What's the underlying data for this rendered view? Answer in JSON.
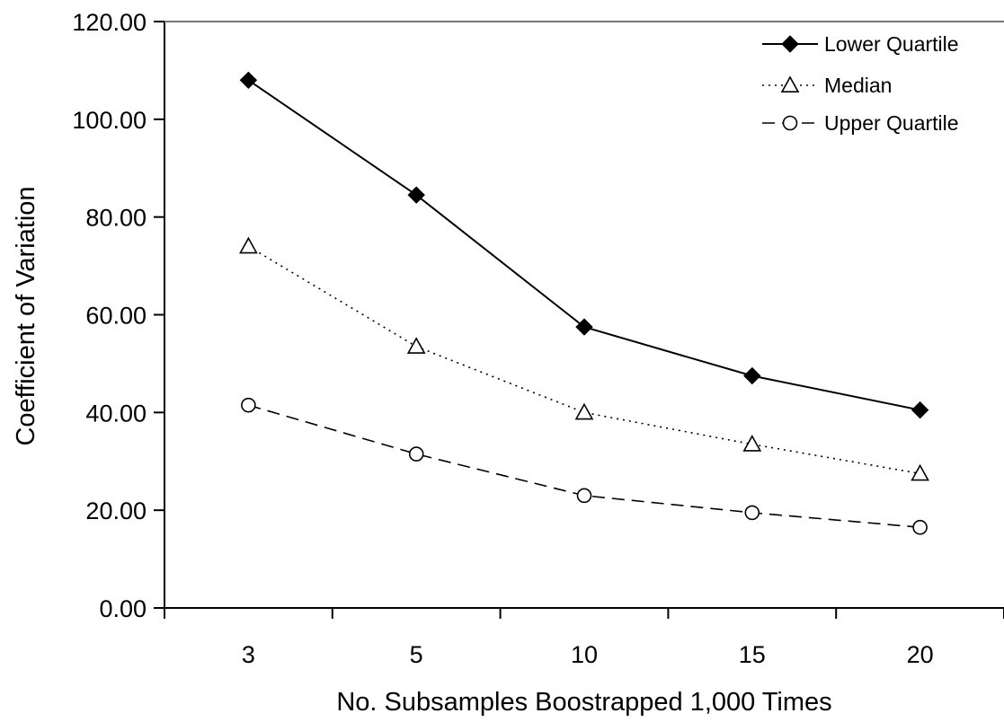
{
  "chart_data": {
    "type": "line",
    "title": "",
    "xlabel": "No. Subsamples Boostrapped 1,000 Times",
    "ylabel": "Coefficient of Variation",
    "categories": [
      "3",
      "5",
      "10",
      "15",
      "20"
    ],
    "ylim": [
      0,
      120
    ],
    "y_ticks": [
      "0.00",
      "20.00",
      "40.00",
      "60.00",
      "80.00",
      "100.00",
      "120.00"
    ],
    "grid": false,
    "legend_position": "top-right",
    "series": [
      {
        "name": "Lower Quartile",
        "values": [
          108.0,
          84.5,
          57.5,
          47.5,
          40.5
        ],
        "marker": "filled-diamond",
        "line_style": "solid",
        "color": "#000000"
      },
      {
        "name": "Median",
        "values": [
          74.0,
          53.5,
          40.0,
          33.5,
          27.5
        ],
        "marker": "open-triangle",
        "line_style": "dotted",
        "color": "#000000"
      },
      {
        "name": "Upper Quartile",
        "values": [
          41.5,
          31.5,
          23.0,
          19.5,
          16.5
        ],
        "marker": "open-circle",
        "line_style": "dashed",
        "color": "#000000"
      }
    ]
  }
}
